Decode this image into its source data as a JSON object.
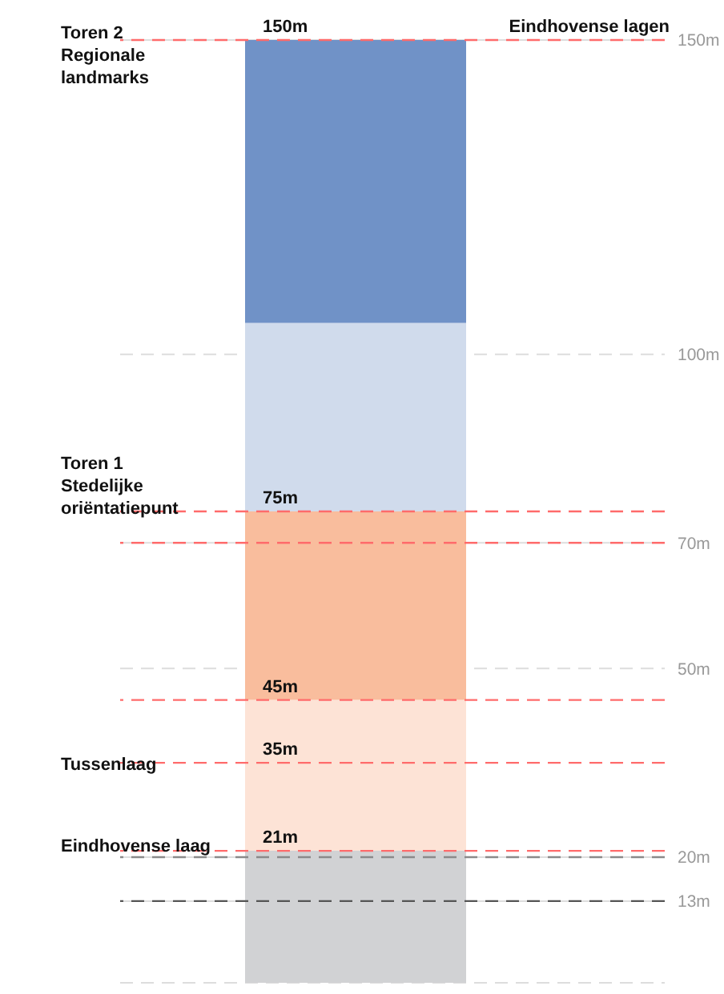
{
  "chart_data": {
    "type": "bar",
    "title": "Eindhovense lagen",
    "categories": [
      null
    ],
    "stacked": true,
    "series": [
      {
        "color": "#d1d2d4",
        "values": [
          21
        ]
      },
      {
        "color": "#fde3d6",
        "values": [
          24
        ]
      },
      {
        "color": "#f9bd9d",
        "values": [
          30
        ]
      },
      {
        "color": "#d0dbec",
        "values": [
          30
        ]
      },
      {
        "color": "#7092c7",
        "values": [
          45
        ]
      }
    ],
    "ylim": [
      0,
      150
    ],
    "yticks": [
      {
        "value": 13,
        "label": "13m"
      },
      {
        "value": 20,
        "label": "20m"
      },
      {
        "value": 50,
        "label": "50m"
      },
      {
        "value": 70,
        "label": "70m"
      },
      {
        "value": 100,
        "label": "100m"
      },
      {
        "value": 150,
        "label": "150m"
      }
    ],
    "tick_labels": "y",
    "grid": "y",
    "ref_lines": [
      {
        "axis": "y",
        "value": 150,
        "label": "150m",
        "color": "#ff6b6b",
        "line_style": "dashed"
      },
      {
        "axis": "y",
        "value": 75,
        "label": "75m",
        "color": "#ff6b6b",
        "line_style": "dashed"
      },
      {
        "axis": "y",
        "value": 70,
        "color": "#ff6b6b",
        "line_style": "dashed"
      },
      {
        "axis": "y",
        "value": 45,
        "label": "45m",
        "color": "#ff6b6b",
        "line_style": "dashed"
      },
      {
        "axis": "y",
        "value": 35,
        "label": "35m",
        "color": "#ff6b6b",
        "line_style": "dashed"
      },
      {
        "axis": "y",
        "value": 21,
        "label": "21m",
        "color": "#ff6b6b",
        "line_style": "dashed"
      },
      {
        "axis": "y",
        "value": 20,
        "color": "#8a8a8a",
        "line_style": "dashed"
      },
      {
        "axis": "y",
        "value": 13,
        "color": "#555555",
        "line_style": "dashed"
      }
    ],
    "annotations": [
      "Toren 2 Regionale landmarks",
      "Toren 1 Stedelijke oriëntatiepunt",
      "Tussenlaag",
      "Eindhovense laag"
    ]
  }
}
